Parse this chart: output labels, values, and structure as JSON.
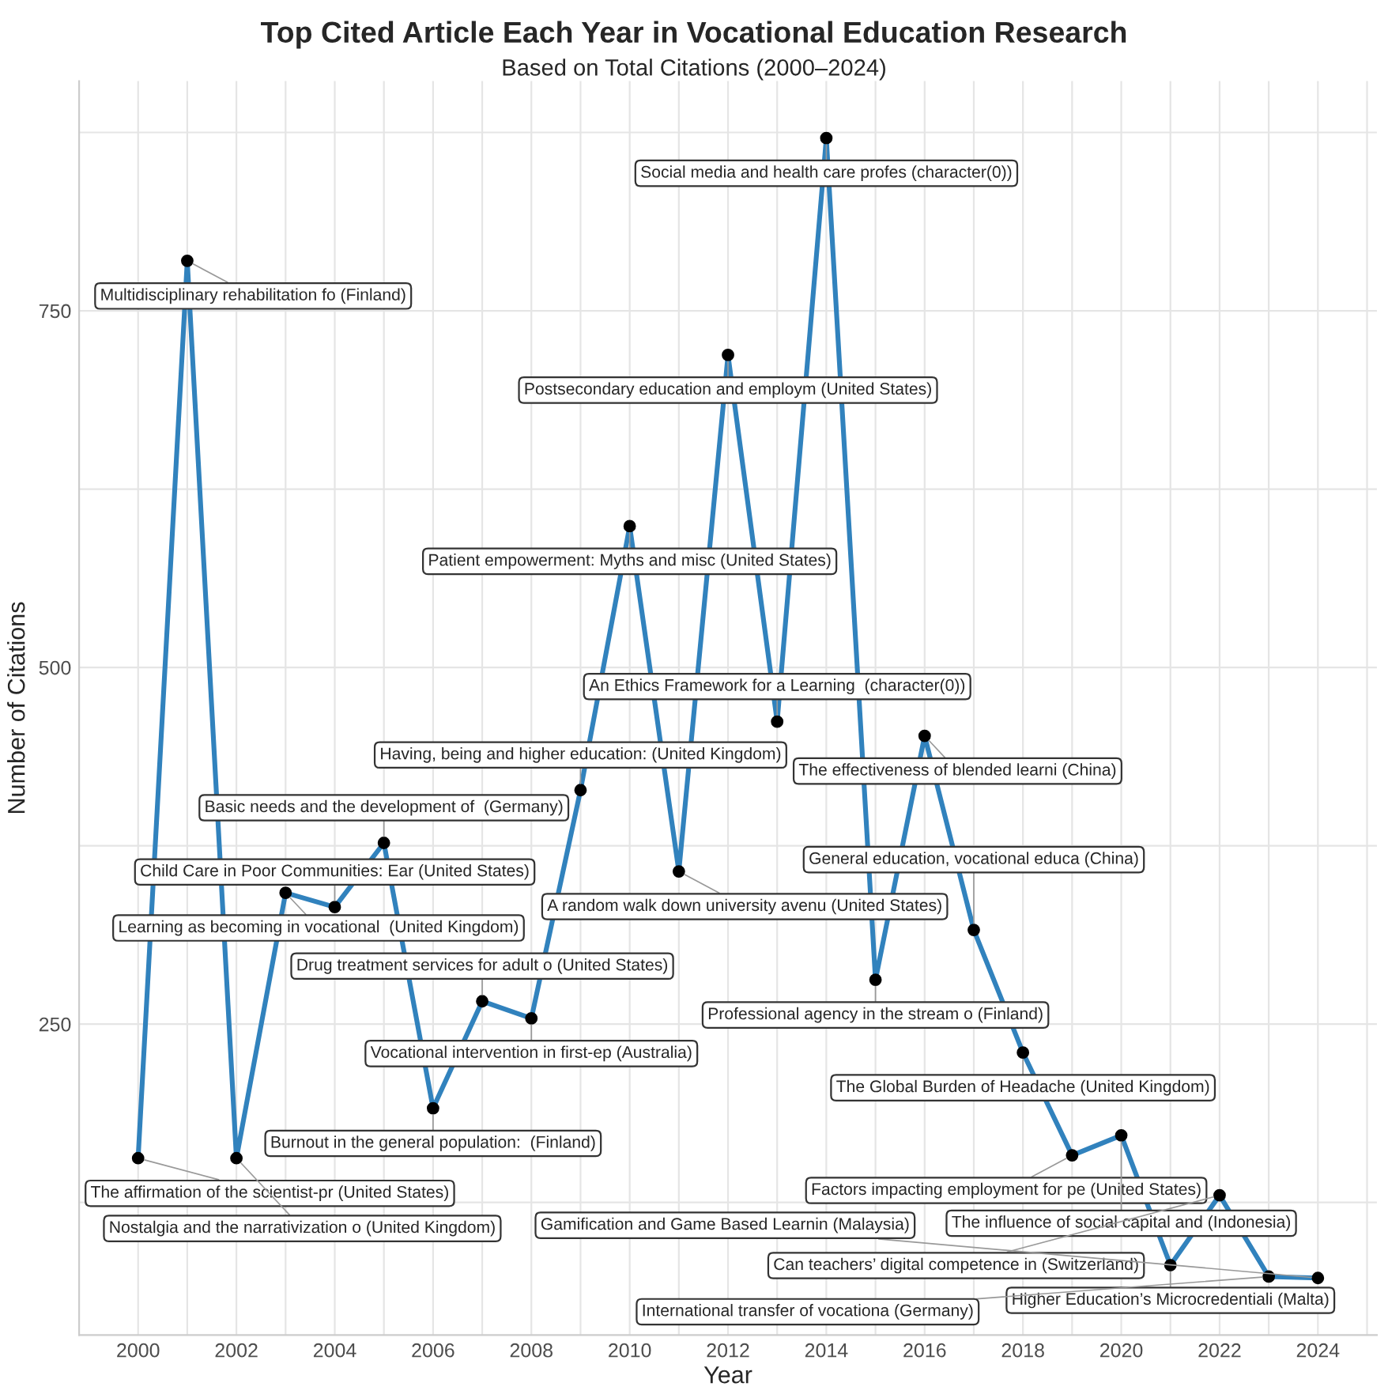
{
  "chart_data": {
    "type": "line",
    "title": "Top Cited Article Each Year in Vocational Education Research",
    "subtitle": "Based on Total Citations (2000–2024)",
    "xlabel": "Year",
    "ylabel": "Number of Citations",
    "x": [
      2000,
      2001,
      2002,
      2003,
      2004,
      2005,
      2006,
      2007,
      2008,
      2009,
      2010,
      2011,
      2012,
      2013,
      2014,
      2015,
      2016,
      2017,
      2018,
      2019,
      2020,
      2021,
      2022,
      2023,
      2024
    ],
    "series": [
      {
        "color": "#3182bd",
        "values": [
          156,
          785,
          156,
          342,
          332,
          377,
          191,
          266,
          254,
          414,
          599,
          357,
          719,
          462,
          871,
          281,
          452,
          316,
          230,
          158,
          172,
          81,
          130,
          73,
          72
        ]
      }
    ],
    "marker": "circle",
    "line_style": "solid",
    "grid": true,
    "xlim": [
      1998.8,
      2025.2
    ],
    "ylim": [
      32,
      911
    ],
    "xticks": [
      2000,
      {
        "value": 2001,
        "label": null
      },
      2002,
      {
        "value": 2003,
        "label": null
      },
      2004,
      {
        "value": 2005,
        "label": null
      },
      2006,
      {
        "value": 2007,
        "label": null
      },
      2008,
      {
        "value": 2009,
        "label": null
      },
      2010,
      {
        "value": 2011,
        "label": null
      },
      2012,
      {
        "value": 2013,
        "label": null
      },
      2014,
      {
        "value": 2015,
        "label": null
      },
      2016,
      {
        "value": 2017,
        "label": null
      },
      2018,
      {
        "value": 2019,
        "label": null
      },
      2020,
      {
        "value": 2021,
        "label": null
      },
      2022,
      {
        "value": 2023,
        "label": null
      },
      2024,
      {
        "value": 2025,
        "label": null
      }
    ],
    "yticks": [
      {
        "value": 125,
        "label": null
      },
      250,
      {
        "value": 375,
        "label": null
      },
      500,
      {
        "value": 625,
        "label": null
      },
      750,
      {
        "value": 875,
        "label": null
      }
    ],
    "annotations": [
      {
        "text": "The affirmation of the scientist-pr (United States)",
        "x": 2000,
        "y": 156
      },
      {
        "text": "Multidisciplinary rehabilitation fo (Finland)",
        "x": 2001,
        "y": 785
      },
      {
        "text": "Nostalgia and the narrativization o (United Kingdom)",
        "x": 2002,
        "y": 156
      },
      {
        "text": "Learning as becoming in vocational  (United Kingdom)",
        "x": 2003,
        "y": 342
      },
      {
        "text": "Child Care in Poor Communities: Ear (United States)",
        "x": 2004,
        "y": 332
      },
      {
        "text": "Basic needs and the development of  (Germany)",
        "x": 2005,
        "y": 377
      },
      {
        "text": "Burnout in the general population:  (Finland)",
        "x": 2006,
        "y": 191
      },
      {
        "text": "Drug treatment services for adult o (United States)",
        "x": 2007,
        "y": 266
      },
      {
        "text": "Vocational intervention in first-ep (Australia)",
        "x": 2008,
        "y": 254
      },
      {
        "text": "Having, being and higher education: (United Kingdom)",
        "x": 2009,
        "y": 414
      },
      {
        "text": "Patient empowerment: Myths and misc (United States)",
        "x": 2010,
        "y": 599
      },
      {
        "text": "A random walk down university avenu (United States)",
        "x": 2011,
        "y": 357
      },
      {
        "text": "Postsecondary education and employm (United States)",
        "x": 2012,
        "y": 719
      },
      {
        "text": "An Ethics Framework for a Learning  (character(0))",
        "x": 2013,
        "y": 462
      },
      {
        "text": "Social media and health care profes (character(0))",
        "x": 2014,
        "y": 871
      },
      {
        "text": "Professional agency in the stream o (Finland)",
        "x": 2015,
        "y": 281
      },
      {
        "text": "The effectiveness of blended learni (China)",
        "x": 2016,
        "y": 452
      },
      {
        "text": "General education, vocational educa (China)",
        "x": 2017,
        "y": 316
      },
      {
        "text": "The Global Burden of Headache (United Kingdom)",
        "x": 2018,
        "y": 230
      },
      {
        "text": "Factors impacting employment for pe (United States)",
        "x": 2019,
        "y": 158
      },
      {
        "text": "The influence of social capital and (Indonesia)",
        "x": 2020,
        "y": 172
      },
      {
        "text": "Higher Education’s Microcredentiali (Malta)",
        "x": 2021,
        "y": 81
      },
      {
        "text": "Can teachers’ digital competence in (Switzerland)",
        "x": 2022,
        "y": 130
      },
      {
        "text": "International transfer of vocationa (Germany)",
        "x": 2023,
        "y": 73
      },
      {
        "text": "Gamification and Game Based Learnin (Malaysia)",
        "x": 2024,
        "y": 72
      }
    ]
  }
}
